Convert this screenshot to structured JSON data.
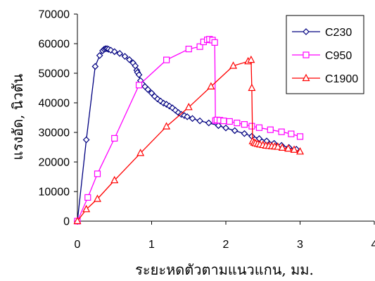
{
  "chart_data": {
    "type": "line",
    "title": "",
    "xlabel": "ระยะหดตัวตามแนวแกน, มม.",
    "ylabel": "แรงอัด, นิวตัน",
    "xlim": [
      0,
      4
    ],
    "ylim": [
      0,
      70000
    ],
    "xticks": [
      "0",
      "1",
      "2",
      "3",
      "4"
    ],
    "yticks": [
      "0",
      "10000",
      "20000",
      "30000",
      "40000",
      "50000",
      "60000",
      "70000"
    ],
    "grid": false,
    "legend_position": "top-right",
    "series": [
      {
        "name": "C230",
        "color": "#000080",
        "marker": "diamond",
        "points": [
          [
            0,
            0
          ],
          [
            0.12,
            27500
          ],
          [
            0.24,
            52300
          ],
          [
            0.3,
            56000
          ],
          [
            0.34,
            57600
          ],
          [
            0.36,
            58100
          ],
          [
            0.38,
            58300
          ],
          [
            0.4,
            58300
          ],
          [
            0.42,
            58100
          ],
          [
            0.45,
            57800
          ],
          [
            0.5,
            57300
          ],
          [
            0.57,
            56700
          ],
          [
            0.64,
            55700
          ],
          [
            0.7,
            54600
          ],
          [
            0.75,
            53500
          ],
          [
            0.78,
            52500
          ],
          [
            0.8,
            51000
          ],
          [
            0.81,
            50300
          ],
          [
            0.83,
            49500
          ],
          [
            0.85,
            47500
          ],
          [
            0.88,
            46300
          ],
          [
            0.91,
            45500
          ],
          [
            0.95,
            44500
          ],
          [
            1.0,
            43300
          ],
          [
            1.04,
            42200
          ],
          [
            1.08,
            41300
          ],
          [
            1.12,
            40600
          ],
          [
            1.16,
            39900
          ],
          [
            1.2,
            39500
          ],
          [
            1.24,
            38900
          ],
          [
            1.28,
            38300
          ],
          [
            1.32,
            37500
          ],
          [
            1.36,
            36700
          ],
          [
            1.4,
            36100
          ],
          [
            1.44,
            35700
          ],
          [
            1.48,
            35300
          ],
          [
            1.55,
            34700
          ],
          [
            1.65,
            33900
          ],
          [
            1.77,
            33200
          ],
          [
            1.9,
            32300
          ],
          [
            2.0,
            31500
          ],
          [
            2.12,
            30600
          ],
          [
            2.25,
            29600
          ],
          [
            2.35,
            28700
          ],
          [
            2.45,
            27900
          ],
          [
            2.55,
            27100
          ],
          [
            2.65,
            26300
          ],
          [
            2.75,
            25600
          ],
          [
            2.85,
            24900
          ],
          [
            2.95,
            24300
          ]
        ]
      },
      {
        "name": "C950",
        "color": "#ff00ff",
        "marker": "square",
        "points": [
          [
            0,
            0
          ],
          [
            0.14,
            8000
          ],
          [
            0.27,
            16000
          ],
          [
            0.5,
            28000
          ],
          [
            0.83,
            46000
          ],
          [
            1.2,
            54500
          ],
          [
            1.5,
            58200
          ],
          [
            1.65,
            59000
          ],
          [
            1.7,
            60600
          ],
          [
            1.75,
            61300
          ],
          [
            1.78,
            61500
          ],
          [
            1.82,
            61200
          ],
          [
            1.85,
            60400
          ],
          [
            1.86,
            34000
          ],
          [
            1.88,
            34200
          ],
          [
            1.92,
            34100
          ],
          [
            1.97,
            33900
          ],
          [
            2.05,
            33700
          ],
          [
            2.15,
            33200
          ],
          [
            2.25,
            32700
          ],
          [
            2.35,
            32100
          ],
          [
            2.45,
            31600
          ],
          [
            2.6,
            30900
          ],
          [
            2.75,
            30200
          ],
          [
            2.88,
            29500
          ],
          [
            3.0,
            28600
          ]
        ]
      },
      {
        "name": "C1900",
        "color": "#ff0000",
        "marker": "triangle",
        "points": [
          [
            0,
            0
          ],
          [
            0.12,
            4000
          ],
          [
            0.27,
            7500
          ],
          [
            0.5,
            13800
          ],
          [
            0.85,
            23000
          ],
          [
            1.2,
            32000
          ],
          [
            1.5,
            38500
          ],
          [
            1.8,
            45500
          ],
          [
            2.1,
            52500
          ],
          [
            2.3,
            54000
          ],
          [
            2.34,
            54500
          ],
          [
            2.35,
            45000
          ],
          [
            2.36,
            27000
          ],
          [
            2.38,
            26500
          ],
          [
            2.4,
            26300
          ],
          [
            2.43,
            26100
          ],
          [
            2.46,
            25900
          ],
          [
            2.5,
            25700
          ],
          [
            2.54,
            25500
          ],
          [
            2.58,
            25400
          ],
          [
            2.62,
            25300
          ],
          [
            2.66,
            25200
          ],
          [
            2.7,
            25100
          ],
          [
            2.76,
            24800
          ],
          [
            2.84,
            24500
          ],
          [
            2.92,
            24100
          ],
          [
            3.0,
            23500
          ]
        ]
      }
    ]
  }
}
